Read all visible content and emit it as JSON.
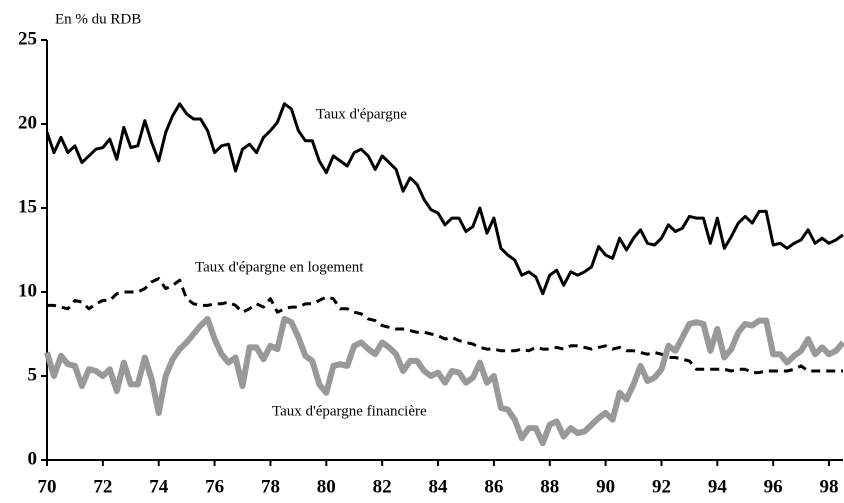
{
  "chart_data": {
    "type": "line",
    "y_label": "En % du RDB",
    "x": [
      70,
      70.25,
      70.5,
      70.75,
      71,
      71.25,
      71.5,
      71.75,
      72,
      72.25,
      72.5,
      72.75,
      73,
      73.25,
      73.5,
      73.75,
      74,
      74.25,
      74.5,
      74.75,
      75,
      75.25,
      75.5,
      75.75,
      76,
      76.25,
      76.5,
      76.75,
      77,
      77.25,
      77.5,
      77.75,
      78,
      78.25,
      78.5,
      78.75,
      79,
      79.25,
      79.5,
      79.75,
      80,
      80.25,
      80.5,
      80.75,
      81,
      81.25,
      81.5,
      81.75,
      82,
      82.25,
      82.5,
      82.75,
      83,
      83.25,
      83.5,
      83.75,
      84,
      84.25,
      84.5,
      84.75,
      85,
      85.25,
      85.5,
      85.75,
      86,
      86.25,
      86.5,
      86.75,
      87,
      87.25,
      87.5,
      87.75,
      88,
      88.25,
      88.5,
      88.75,
      89,
      89.25,
      89.5,
      89.75,
      90,
      90.25,
      90.5,
      90.75,
      91,
      91.25,
      91.5,
      91.75,
      92,
      92.25,
      92.5,
      92.75,
      93,
      93.25,
      93.5,
      93.75,
      94,
      94.25,
      94.5,
      94.75,
      95,
      95.25,
      95.5,
      95.75,
      96,
      96.25,
      96.5,
      96.75,
      97,
      97.25,
      97.5,
      97.75,
      98,
      98.25,
      98.5
    ],
    "series": [
      {
        "name": "Taux d'épargne",
        "color": "#000000",
        "line_style": "solid",
        "width": 3,
        "values": [
          19.5,
          18.3,
          19.2,
          18.3,
          18.7,
          17.7,
          18.1,
          18.5,
          18.6,
          19.1,
          17.9,
          19.8,
          18.6,
          18.7,
          20.2,
          18.9,
          17.8,
          19.5,
          20.5,
          21.2,
          20.6,
          20.3,
          20.3,
          19.6,
          18.3,
          18.7,
          18.8,
          17.2,
          18.5,
          18.8,
          18.3,
          19.2,
          19.6,
          20.1,
          21.2,
          20.9,
          19.6,
          19.0,
          19.0,
          17.8,
          17.1,
          18.1,
          17.8,
          17.5,
          18.3,
          18.5,
          18.1,
          17.3,
          18.1,
          17.7,
          17.3,
          16.0,
          16.8,
          16.4,
          15.5,
          14.9,
          14.7,
          14.0,
          14.4,
          14.4,
          13.6,
          13.9,
          15.0,
          13.5,
          14.4,
          12.6,
          12.2,
          11.9,
          11.0,
          11.2,
          10.9,
          9.9,
          11.0,
          11.3,
          10.4,
          11.2,
          11.0,
          11.2,
          11.5,
          12.7,
          12.2,
          12.0,
          13.2,
          12.5,
          13.2,
          13.7,
          12.9,
          12.8,
          13.2,
          14.0,
          13.6,
          13.8,
          14.5,
          14.4,
          14.4,
          12.9,
          14.4,
          12.6,
          13.3,
          14.1,
          14.5,
          14.1,
          14.8,
          14.8,
          12.8,
          12.9,
          12.6,
          12.9,
          13.1,
          13.7,
          12.9,
          13.2,
          12.9,
          13.1,
          13.4
        ]
      },
      {
        "name": "Taux d'épargne en logement",
        "color": "#000000",
        "line_style": "dashed",
        "width": 3,
        "values": [
          9.2,
          9.2,
          9.1,
          9.0,
          9.5,
          9.4,
          9.0,
          9.3,
          9.5,
          9.5,
          9.9,
          10.0,
          10.0,
          10.0,
          10.2,
          10.6,
          10.8,
          10.2,
          10.4,
          10.7,
          9.6,
          9.3,
          9.2,
          9.2,
          9.3,
          9.3,
          9.4,
          9.2,
          8.8,
          9.0,
          9.3,
          9.1,
          9.6,
          8.8,
          9.0,
          9.1,
          9.1,
          9.3,
          9.3,
          9.5,
          9.7,
          9.6,
          9.0,
          9.0,
          8.8,
          8.7,
          8.4,
          8.3,
          8.0,
          7.9,
          7.8,
          7.8,
          7.7,
          7.6,
          7.6,
          7.5,
          7.4,
          7.2,
          7.3,
          7.1,
          7.0,
          6.9,
          6.7,
          6.6,
          6.6,
          6.5,
          6.5,
          6.5,
          6.6,
          6.5,
          6.7,
          6.6,
          6.6,
          6.7,
          6.6,
          6.8,
          6.8,
          6.7,
          6.6,
          6.7,
          6.8,
          6.6,
          6.7,
          6.5,
          6.5,
          6.4,
          6.3,
          6.4,
          6.3,
          6.1,
          6.1,
          6.0,
          5.9,
          5.4,
          5.4,
          5.4,
          5.4,
          5.4,
          5.3,
          5.4,
          5.4,
          5.2,
          5.2,
          5.3,
          5.3,
          5.3,
          5.3,
          5.4,
          5.6,
          5.3,
          5.3,
          5.3,
          5.3,
          5.3,
          5.3
        ]
      },
      {
        "name": "Taux d'épargne financière",
        "color": "#999999",
        "line_style": "solid",
        "width": 6,
        "values": [
          6.4,
          5.0,
          6.2,
          5.7,
          5.6,
          4.4,
          5.4,
          5.3,
          5.0,
          5.4,
          4.1,
          5.8,
          4.5,
          4.5,
          6.1,
          4.8,
          2.8,
          5.0,
          6.0,
          6.6,
          7.0,
          7.5,
          8.0,
          8.4,
          7.2,
          6.3,
          5.8,
          6.1,
          4.4,
          6.7,
          6.7,
          6.0,
          6.8,
          6.6,
          8.4,
          8.2,
          7.3,
          6.2,
          5.9,
          4.5,
          4.0,
          5.6,
          5.7,
          5.6,
          6.8,
          7.0,
          6.6,
          6.3,
          7.0,
          6.7,
          6.3,
          5.3,
          5.9,
          5.9,
          5.3,
          5.0,
          5.2,
          4.6,
          5.3,
          5.2,
          4.6,
          4.9,
          5.8,
          4.6,
          5.0,
          3.1,
          3.0,
          2.4,
          1.3,
          1.9,
          1.9,
          1.0,
          2.1,
          2.3,
          1.4,
          1.9,
          1.6,
          1.7,
          2.1,
          2.5,
          2.8,
          2.4,
          4.0,
          3.6,
          4.5,
          5.6,
          4.7,
          4.9,
          5.4,
          6.8,
          6.5,
          7.3,
          8.1,
          8.2,
          8.1,
          6.5,
          7.8,
          6.1,
          6.6,
          7.6,
          8.1,
          8.0,
          8.3,
          8.3,
          6.3,
          6.3,
          5.8,
          6.2,
          6.5,
          7.2,
          6.3,
          6.7,
          6.3,
          6.5,
          7.0
        ]
      }
    ],
    "xlim": [
      70,
      98.5
    ],
    "xticks": [
      70,
      72,
      74,
      76,
      78,
      80,
      82,
      84,
      86,
      88,
      90,
      92,
      94,
      96,
      98
    ],
    "ylim": [
      0,
      25
    ],
    "yticks": [
      0,
      5,
      10,
      15,
      20,
      25
    ],
    "grid": false
  }
}
